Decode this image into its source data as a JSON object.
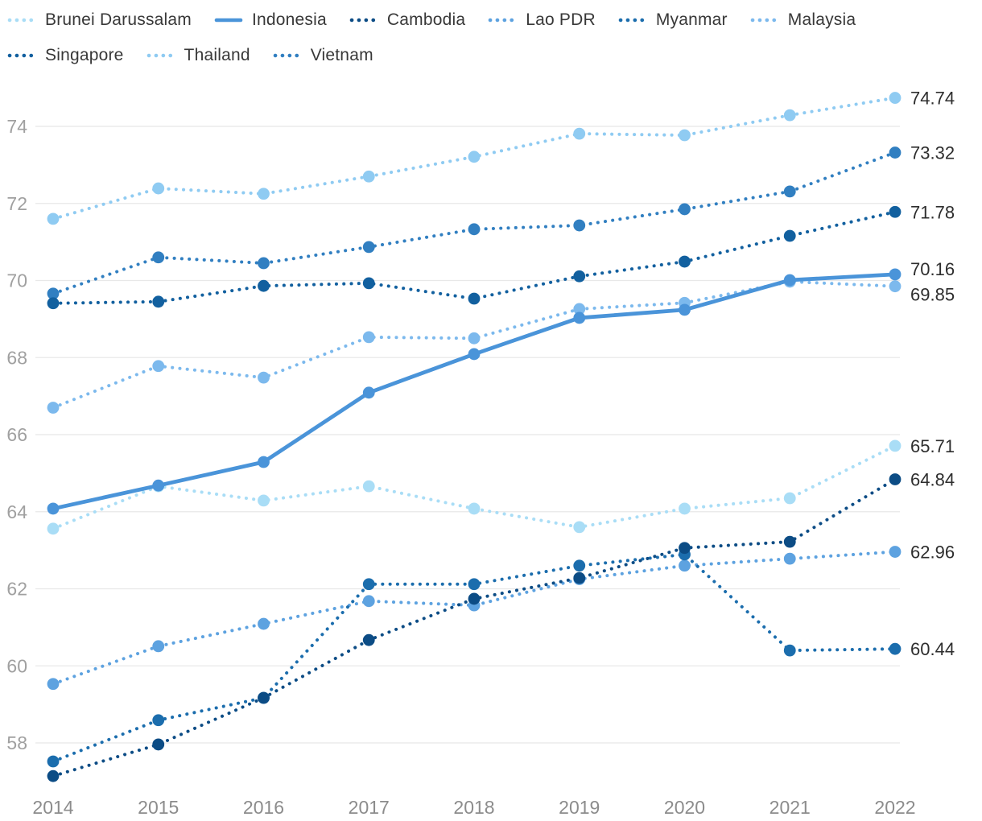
{
  "legend": {
    "items": [
      {
        "label": "Brunei Darussalam",
        "row": 1
      },
      {
        "label": "Indonesia",
        "row": 1
      },
      {
        "label": "Cambodia",
        "row": 1
      },
      {
        "label": "Lao PDR",
        "row": 1
      },
      {
        "label": "Myanmar",
        "row": 1
      },
      {
        "label": "Malaysia",
        "row": 1
      },
      {
        "label": "Singapore",
        "row": 2
      },
      {
        "label": "Thailand",
        "row": 2
      },
      {
        "label": "Vietnam",
        "row": 2
      }
    ]
  },
  "chart_data": {
    "type": "line",
    "title": "",
    "x": [
      2014,
      2015,
      2016,
      2017,
      2018,
      2019,
      2020,
      2021,
      2022
    ],
    "y_ticks": [
      58,
      60,
      62,
      64,
      66,
      68,
      70,
      72,
      74
    ],
    "ylim": [
      56.9,
      75.3
    ],
    "grid": true,
    "legend_position": "top",
    "series": [
      {
        "name": "Brunei Darussalam",
        "color": "#a9ddf6",
        "line_style": "dotted",
        "values": [
          63.56,
          64.66,
          64.29,
          64.66,
          64.08,
          63.6,
          64.08,
          64.35,
          65.71
        ],
        "end_label": "65.71"
      },
      {
        "name": "Indonesia",
        "color": "#4a94d9",
        "line_style": "solid",
        "values": [
          64.08,
          64.68,
          65.29,
          67.09,
          68.09,
          69.03,
          69.24,
          70.01,
          70.16
        ],
        "end_label": "70.16"
      },
      {
        "name": "Cambodia",
        "color": "#0c4c85",
        "line_style": "dotted",
        "values": [
          57.14,
          57.96,
          59.17,
          60.67,
          61.74,
          62.28,
          63.06,
          63.22,
          64.84
        ],
        "end_label": "64.84"
      },
      {
        "name": "Lao PDR",
        "color": "#5da2e0",
        "line_style": "dotted",
        "values": [
          59.53,
          60.51,
          61.09,
          61.68,
          61.57,
          62.25,
          62.6,
          62.78,
          62.96
        ],
        "end_label": "62.96"
      },
      {
        "name": "Myanmar",
        "color": "#1b6dad",
        "line_style": "dotted",
        "values": [
          57.52,
          58.59,
          59.17,
          62.12,
          62.12,
          62.6,
          62.89,
          60.4,
          60.44
        ],
        "end_label": "60.44"
      },
      {
        "name": "Malaysia",
        "color": "#7cb9ed",
        "line_style": "dotted",
        "values": [
          66.7,
          67.78,
          67.48,
          68.53,
          68.5,
          69.26,
          69.42,
          69.97,
          69.85
        ],
        "end_label": "69.85"
      },
      {
        "name": "Singapore",
        "color": "#12609f",
        "line_style": "dotted",
        "values": [
          69.41,
          69.45,
          69.86,
          69.93,
          69.53,
          70.11,
          70.49,
          71.16,
          71.78
        ],
        "end_label": "71.78"
      },
      {
        "name": "Thailand",
        "color": "#8fcbf2",
        "line_style": "dotted",
        "values": [
          71.6,
          72.39,
          72.25,
          72.7,
          73.21,
          73.81,
          73.77,
          74.29,
          74.74
        ],
        "end_label": "74.74"
      },
      {
        "name": "Vietnam",
        "color": "#317fc1",
        "line_style": "dotted",
        "values": [
          69.66,
          70.6,
          70.45,
          70.87,
          71.33,
          71.43,
          71.85,
          72.31,
          73.32
        ],
        "end_label": "73.32"
      }
    ]
  },
  "colors": {
    "background": "#ffffff",
    "grid": "#e8e8e8",
    "y_tick_text": "#a0a0a0",
    "x_tick_text": "#8c8c8c",
    "end_label_text": "#2e2e2e",
    "legend_text": "#383838"
  }
}
